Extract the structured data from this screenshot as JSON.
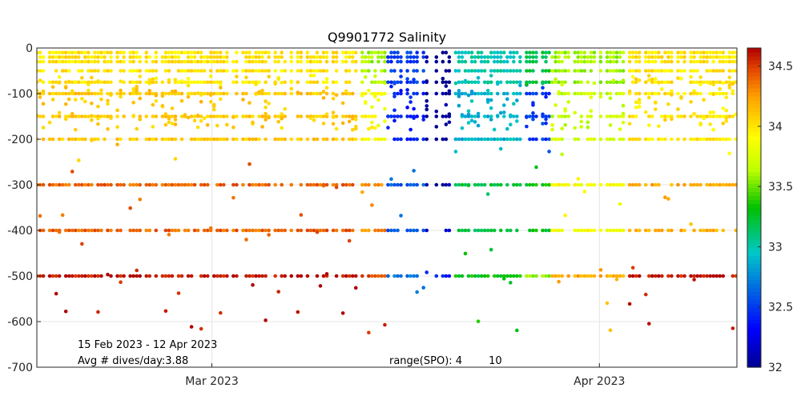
{
  "chart_data": {
    "type": "scatter",
    "title": "Q9901772 Salinity",
    "xlabel": "",
    "ylabel": "",
    "x_range": [
      "2023-02-15",
      "2023-04-12"
    ],
    "ylim": [
      -700,
      0
    ],
    "y_ticks": [
      0,
      -100,
      -200,
      -300,
      -400,
      -500,
      -600,
      -700
    ],
    "y_tick_labels": [
      "0",
      "-100",
      "-200",
      "-300",
      "-400",
      "-500",
      "-600",
      "-700"
    ],
    "x_ticks": [
      {
        "date": "2023-03-01",
        "label": "Mar 2023"
      },
      {
        "date": "2023-04-01",
        "label": "Apr 2023"
      }
    ],
    "grid": true,
    "colorbar": {
      "min": 32,
      "max": 34.65,
      "ticks": [
        32,
        32.5,
        33,
        33.5,
        34,
        34.5
      ],
      "tick_labels": [
        "32",
        "32.5",
        "33",
        "33.5",
        "34",
        "34.5"
      ],
      "colormap": "jet-like",
      "placement": "right"
    },
    "annotations": {
      "date_range": "15 Feb 2023 - 12 Apr 2023",
      "avg_dives": "Avg # dives/day:3.88",
      "range_spo": "range(SPO): 4        10"
    },
    "depth_levels": [
      -10,
      -20,
      -30,
      -50,
      -75,
      -100,
      -150,
      -200,
      -300,
      -400,
      -500
    ],
    "segments": [
      {
        "date_start": "2023-02-15",
        "date_end": "2023-03-12",
        "salinity_by_depth": {
          "shallow": 34.0,
          "mid": 34.1,
          "deep": 34.4,
          "bottom": 34.6
        }
      },
      {
        "date_start": "2023-03-13",
        "date_end": "2023-03-14",
        "salinity_by_depth": {
          "shallow": 33.6,
          "mid": 33.9,
          "deep": 34.3,
          "bottom": 34.5
        }
      },
      {
        "date_start": "2023-03-15",
        "date_end": "2023-03-17",
        "salinity_by_depth": {
          "shallow": 32.5,
          "mid": 32.4,
          "deep": 32.6,
          "bottom": 32.7
        }
      },
      {
        "date_start": "2023-03-18",
        "date_end": "2023-03-19",
        "salinity_by_depth": {
          "shallow": 32.0,
          "mid": 32.0,
          "deep": 32.1,
          "bottom": 32.4
        }
      },
      {
        "date_start": "2023-03-20",
        "date_end": "2023-03-25",
        "salinity_by_depth": {
          "shallow": 33.0,
          "mid": 32.9,
          "deep": 33.2,
          "bottom": 33.3
        }
      },
      {
        "date_start": "2023-03-26",
        "date_end": "2023-03-27",
        "salinity_by_depth": {
          "shallow": 33.2,
          "mid": 32.5,
          "deep": 33.3,
          "bottom": 33.6
        }
      },
      {
        "date_start": "2023-03-28",
        "date_end": "2023-04-02",
        "salinity_by_depth": {
          "shallow": 33.6,
          "mid": 33.7,
          "deep": 33.9,
          "bottom": 34.2
        }
      },
      {
        "date_start": "2023-04-03",
        "date_end": "2023-04-12",
        "salinity_by_depth": {
          "shallow": 34.0,
          "mid": 34.0,
          "deep": 34.2,
          "bottom": 34.6
        }
      }
    ]
  }
}
